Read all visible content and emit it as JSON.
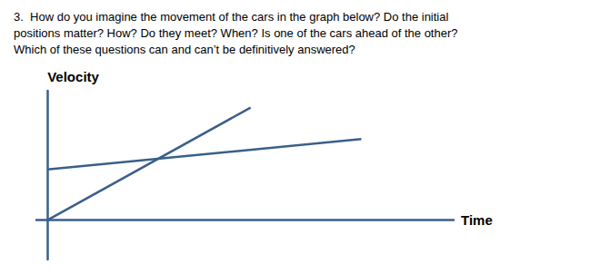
{
  "chart_data": {
    "type": "line",
    "title": "3.  How do you imagine the movement of the cars in the graph below? Do the initial\npositions matter? How? Do they meet? When? Is one of the cars ahead of the other?\nWhich of these questions can and can’t be definitively answered?",
    "xlabel": "Time",
    "ylabel": "Velocity",
    "color": "#3A5F8A",
    "series": [
      {
        "x": [
          0.0,
          0.55
        ],
        "values": [
          0.0,
          1.0
        ]
      },
      {
        "x": [
          0.0,
          0.85
        ],
        "values": [
          0.45,
          0.72
        ]
      }
    ],
    "xlim": [
      -0.03,
      1.1
    ],
    "ylim": [
      -0.35,
      1.15
    ],
    "tick_labels": false,
    "grid": false
  }
}
